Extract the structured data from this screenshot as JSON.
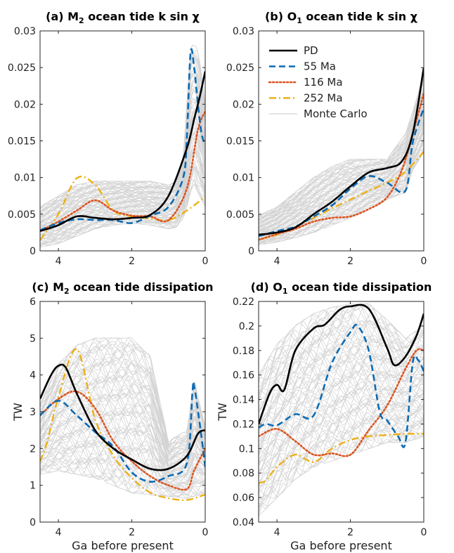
{
  "legend": {
    "entries": [
      {
        "label": "PD",
        "color": "#000000",
        "dash": "solid"
      },
      {
        "label": "55 Ma",
        "color": "#0c6bb3",
        "dash": "dashed"
      },
      {
        "label": "116 Ma",
        "color": "#db5522",
        "dash": "dotted"
      },
      {
        "label": "252 Ma",
        "color": "#ecb014",
        "dash": "dashdot"
      },
      {
        "label": "Monte Carlo",
        "color": "#d3d3d3",
        "dash": "solid"
      }
    ]
  },
  "chart_data": [
    {
      "type": "line",
      "title": {
        "prefix": "(a) M",
        "sub": "2",
        "rest": " ocean tide k sin χ"
      },
      "xlabel": "",
      "ylabel": "",
      "xlim": [
        4.5,
        0
      ],
      "ylim": [
        0,
        0.03
      ],
      "xticks": [
        4,
        2,
        0
      ],
      "yticks": [
        "0",
        "0.005",
        "0.01",
        "0.015",
        "0.02",
        "0.025",
        "0.03"
      ],
      "grid": false,
      "monte_carlo_band": {
        "x": [
          4.5,
          4.0,
          3.5,
          3.0,
          2.5,
          2.0,
          1.5,
          1.0,
          0.8,
          0.6,
          0.5,
          0.4,
          0.3,
          0.2,
          0.1,
          0.0
        ],
        "lower": [
          0.0005,
          0.001,
          0.002,
          0.003,
          0.0035,
          0.0038,
          0.0035,
          0.003,
          0.0032,
          0.0045,
          0.006,
          0.008,
          0.009,
          0.008,
          0.007,
          0.006
        ],
        "upper": [
          0.006,
          0.0075,
          0.009,
          0.0095,
          0.0095,
          0.0095,
          0.0095,
          0.009,
          0.0095,
          0.013,
          0.02,
          0.027,
          0.028,
          0.027,
          0.024,
          0.02
        ]
      },
      "series": [
        {
          "name": "PD",
          "x": [
            4.5,
            4.0,
            3.5,
            3.0,
            2.5,
            2.0,
            1.5,
            1.0,
            0.5,
            0.3,
            0.15,
            0.0
          ],
          "y": [
            0.0027,
            0.0035,
            0.0047,
            0.0045,
            0.0043,
            0.0045,
            0.0049,
            0.0075,
            0.014,
            0.018,
            0.021,
            0.0245
          ]
        },
        {
          "name": "55 Ma",
          "x": [
            4.5,
            4.0,
            3.5,
            3.0,
            2.5,
            2.0,
            1.5,
            1.0,
            0.6,
            0.5,
            0.4,
            0.3,
            0.2,
            0.1,
            0.0
          ],
          "y": [
            0.0028,
            0.0038,
            0.0043,
            0.0042,
            0.0042,
            0.0038,
            0.0048,
            0.006,
            0.01,
            0.0155,
            0.027,
            0.025,
            0.02,
            0.016,
            0.0145
          ]
        },
        {
          "name": "116 Ma",
          "x": [
            4.5,
            4.0,
            3.5,
            3.0,
            2.5,
            2.0,
            1.5,
            1.0,
            0.5,
            0.2,
            0.0
          ],
          "y": [
            0.0027,
            0.004,
            0.0055,
            0.0069,
            0.0055,
            0.0048,
            0.0047,
            0.0042,
            0.0085,
            0.0165,
            0.019
          ]
        },
        {
          "name": "252 Ma",
          "x": [
            4.5,
            4.0,
            3.5,
            3.0,
            2.5,
            2.0,
            1.5,
            1.0,
            0.5,
            0.0
          ],
          "y": [
            0.0015,
            0.005,
            0.0099,
            0.009,
            0.0055,
            0.0047,
            0.0044,
            0.0042,
            0.0055,
            0.0074
          ]
        }
      ]
    },
    {
      "type": "line",
      "title": {
        "prefix": "(b) O",
        "sub": "1",
        "rest": " ocean tide k sin χ"
      },
      "xlabel": "",
      "ylabel": "",
      "xlim": [
        4.5,
        0
      ],
      "ylim": [
        0,
        0.03
      ],
      "xticks": [
        4,
        2,
        0
      ],
      "yticks": [
        "0",
        "0.005",
        "0.01",
        "0.015",
        "0.02",
        "0.025",
        "0.03"
      ],
      "grid": false,
      "monte_carlo_band": {
        "x": [
          4.5,
          4.0,
          3.5,
          3.0,
          2.5,
          2.0,
          1.5,
          1.0,
          0.5,
          0.3,
          0.0
        ],
        "lower": [
          0.0008,
          0.0012,
          0.0018,
          0.0025,
          0.0035,
          0.0045,
          0.006,
          0.007,
          0.008,
          0.011,
          0.0135
        ],
        "upper": [
          0.0048,
          0.006,
          0.008,
          0.01,
          0.0115,
          0.0125,
          0.0125,
          0.0125,
          0.016,
          0.019,
          0.024
        ]
      },
      "series": [
        {
          "name": "PD",
          "x": [
            4.5,
            4.0,
            3.5,
            3.0,
            2.5,
            2.0,
            1.5,
            1.0,
            0.6,
            0.3,
            0.0
          ],
          "y": [
            0.0022,
            0.0025,
            0.0032,
            0.005,
            0.0067,
            0.0088,
            0.0107,
            0.0113,
            0.0122,
            0.016,
            0.025
          ]
        },
        {
          "name": "55 Ma",
          "x": [
            4.5,
            4.0,
            3.5,
            3.0,
            2.5,
            2.0,
            1.5,
            1.0,
            0.5,
            0.3,
            0.0
          ],
          "y": [
            0.002,
            0.0027,
            0.0033,
            0.0047,
            0.0062,
            0.0085,
            0.0102,
            0.0093,
            0.0082,
            0.0148,
            0.0195
          ]
        },
        {
          "name": "116 Ma",
          "x": [
            4.5,
            4.0,
            3.5,
            3.0,
            2.5,
            2.0,
            1.5,
            1.0,
            0.6,
            0.3,
            0.0
          ],
          "y": [
            0.0015,
            0.0023,
            0.003,
            0.004,
            0.0045,
            0.0047,
            0.0057,
            0.0073,
            0.011,
            0.016,
            0.0215
          ]
        },
        {
          "name": "252 Ma",
          "x": [
            4.5,
            4.0,
            3.5,
            3.0,
            2.5,
            2.0,
            1.5,
            1.0,
            0.5,
            0.0
          ],
          "y": [
            0.0015,
            0.0022,
            0.0033,
            0.0045,
            0.0058,
            0.007,
            0.0082,
            0.0093,
            0.0108,
            0.0135
          ]
        }
      ]
    },
    {
      "type": "line",
      "title": {
        "prefix": "(c) M",
        "sub": "2",
        "rest": " ocean tide dissipation"
      },
      "xlabel": "Ga before present",
      "ylabel": "TW",
      "xlim": [
        4.5,
        0
      ],
      "ylim": [
        0,
        6
      ],
      "xticks": [
        4,
        2,
        0
      ],
      "yticks": [
        "0",
        "1",
        "2",
        "3",
        "4",
        "5",
        "6"
      ],
      "grid": false,
      "monte_carlo_band": {
        "x": [
          4.5,
          4.0,
          3.5,
          3.0,
          2.5,
          2.0,
          1.5,
          1.0,
          0.5,
          0.3,
          0.0
        ],
        "lower": [
          1.3,
          1.4,
          1.3,
          1.2,
          1.0,
          0.8,
          0.75,
          0.7,
          0.65,
          0.7,
          0.8
        ],
        "upper": [
          3.2,
          4.3,
          4.8,
          5.0,
          5.0,
          5.0,
          4.5,
          2.2,
          2.5,
          3.8,
          2.6
        ]
      },
      "series": [
        {
          "name": "PD",
          "x": [
            4.5,
            4.2,
            4.0,
            3.8,
            3.5,
            3.0,
            2.5,
            2.0,
            1.5,
            1.0,
            0.5,
            0.2,
            0.0
          ],
          "y": [
            3.35,
            4.0,
            4.25,
            4.2,
            3.5,
            2.5,
            2.0,
            1.7,
            1.45,
            1.45,
            1.8,
            2.4,
            2.5
          ]
        },
        {
          "name": "55 Ma",
          "x": [
            4.5,
            4.0,
            3.5,
            3.0,
            2.5,
            2.0,
            1.5,
            1.0,
            0.5,
            0.35,
            0.3,
            0.1,
            0.0
          ],
          "y": [
            2.9,
            3.3,
            2.9,
            2.45,
            2.05,
            1.35,
            1.1,
            1.25,
            1.6,
            3.5,
            3.7,
            2.3,
            1.5
          ]
        },
        {
          "name": "116 Ma",
          "x": [
            4.5,
            4.0,
            3.5,
            3.0,
            2.5,
            2.0,
            1.5,
            1.0,
            0.5,
            0.3,
            0.0
          ],
          "y": [
            2.9,
            3.35,
            3.55,
            3.1,
            2.2,
            1.65,
            1.25,
            1.0,
            0.9,
            1.4,
            2.0
          ]
        },
        {
          "name": "252 Ma",
          "x": [
            4.5,
            4.3,
            4.0,
            3.5,
            3.0,
            2.5,
            2.0,
            1.5,
            1.0,
            0.5,
            0.0
          ],
          "y": [
            1.65,
            2.2,
            3.4,
            4.7,
            2.8,
            1.8,
            1.2,
            0.8,
            0.65,
            0.6,
            0.75
          ]
        }
      ]
    },
    {
      "type": "line",
      "title": {
        "prefix": "(d) O",
        "sub": "1",
        "rest": " ocean tide dissipation"
      },
      "xlabel": "Ga before present",
      "ylabel": "TW",
      "xlim": [
        4.5,
        0
      ],
      "ylim": [
        0.04,
        0.22
      ],
      "xticks": [
        4,
        2,
        0
      ],
      "yticks": [
        "0.04",
        "0.06",
        "0.08",
        "0.1",
        "0.12",
        "0.14",
        "0.16",
        "0.18",
        "0.2",
        "0.22"
      ],
      "grid": false,
      "monte_carlo_band": {
        "x": [
          4.5,
          4.0,
          3.5,
          3.0,
          2.5,
          2.0,
          1.5,
          1.0,
          0.5,
          0.0
        ],
        "lower": [
          0.045,
          0.06,
          0.075,
          0.085,
          0.09,
          0.095,
          0.1,
          0.105,
          0.105,
          0.11
        ],
        "upper": [
          0.16,
          0.185,
          0.2,
          0.21,
          0.215,
          0.218,
          0.218,
          0.205,
          0.19,
          0.2
        ]
      },
      "series": [
        {
          "name": "PD",
          "x": [
            4.5,
            4.2,
            4.0,
            3.8,
            3.5,
            3.0,
            2.7,
            2.3,
            2.0,
            1.5,
            1.0,
            0.8,
            0.5,
            0.2,
            0.0
          ],
          "y": [
            0.12,
            0.145,
            0.152,
            0.148,
            0.18,
            0.198,
            0.201,
            0.213,
            0.216,
            0.214,
            0.182,
            0.168,
            0.175,
            0.192,
            0.21
          ]
        },
        {
          "name": "55 Ma",
          "x": [
            4.5,
            4.3,
            4.0,
            3.5,
            3.0,
            2.5,
            2.0,
            1.8,
            1.5,
            1.2,
            1.0,
            0.7,
            0.5,
            0.3,
            0.15,
            0.0
          ],
          "y": [
            0.117,
            0.12,
            0.119,
            0.128,
            0.127,
            0.17,
            0.195,
            0.2,
            0.18,
            0.13,
            0.123,
            0.11,
            0.105,
            0.17,
            0.172,
            0.163
          ]
        },
        {
          "name": "116 Ma",
          "x": [
            4.5,
            4.0,
            3.5,
            3.0,
            2.5,
            2.0,
            1.5,
            1.0,
            0.5,
            0.2,
            0.0
          ],
          "y": [
            0.11,
            0.116,
            0.106,
            0.095,
            0.096,
            0.095,
            0.115,
            0.135,
            0.165,
            0.18,
            0.18
          ]
        },
        {
          "name": "252 Ma",
          "x": [
            4.5,
            4.3,
            4.0,
            3.5,
            3.0,
            2.5,
            2.0,
            1.5,
            1.0,
            0.5,
            0.0
          ],
          "y": [
            0.072,
            0.074,
            0.085,
            0.095,
            0.089,
            0.1,
            0.107,
            0.11,
            0.111,
            0.112,
            0.112
          ]
        }
      ]
    }
  ]
}
